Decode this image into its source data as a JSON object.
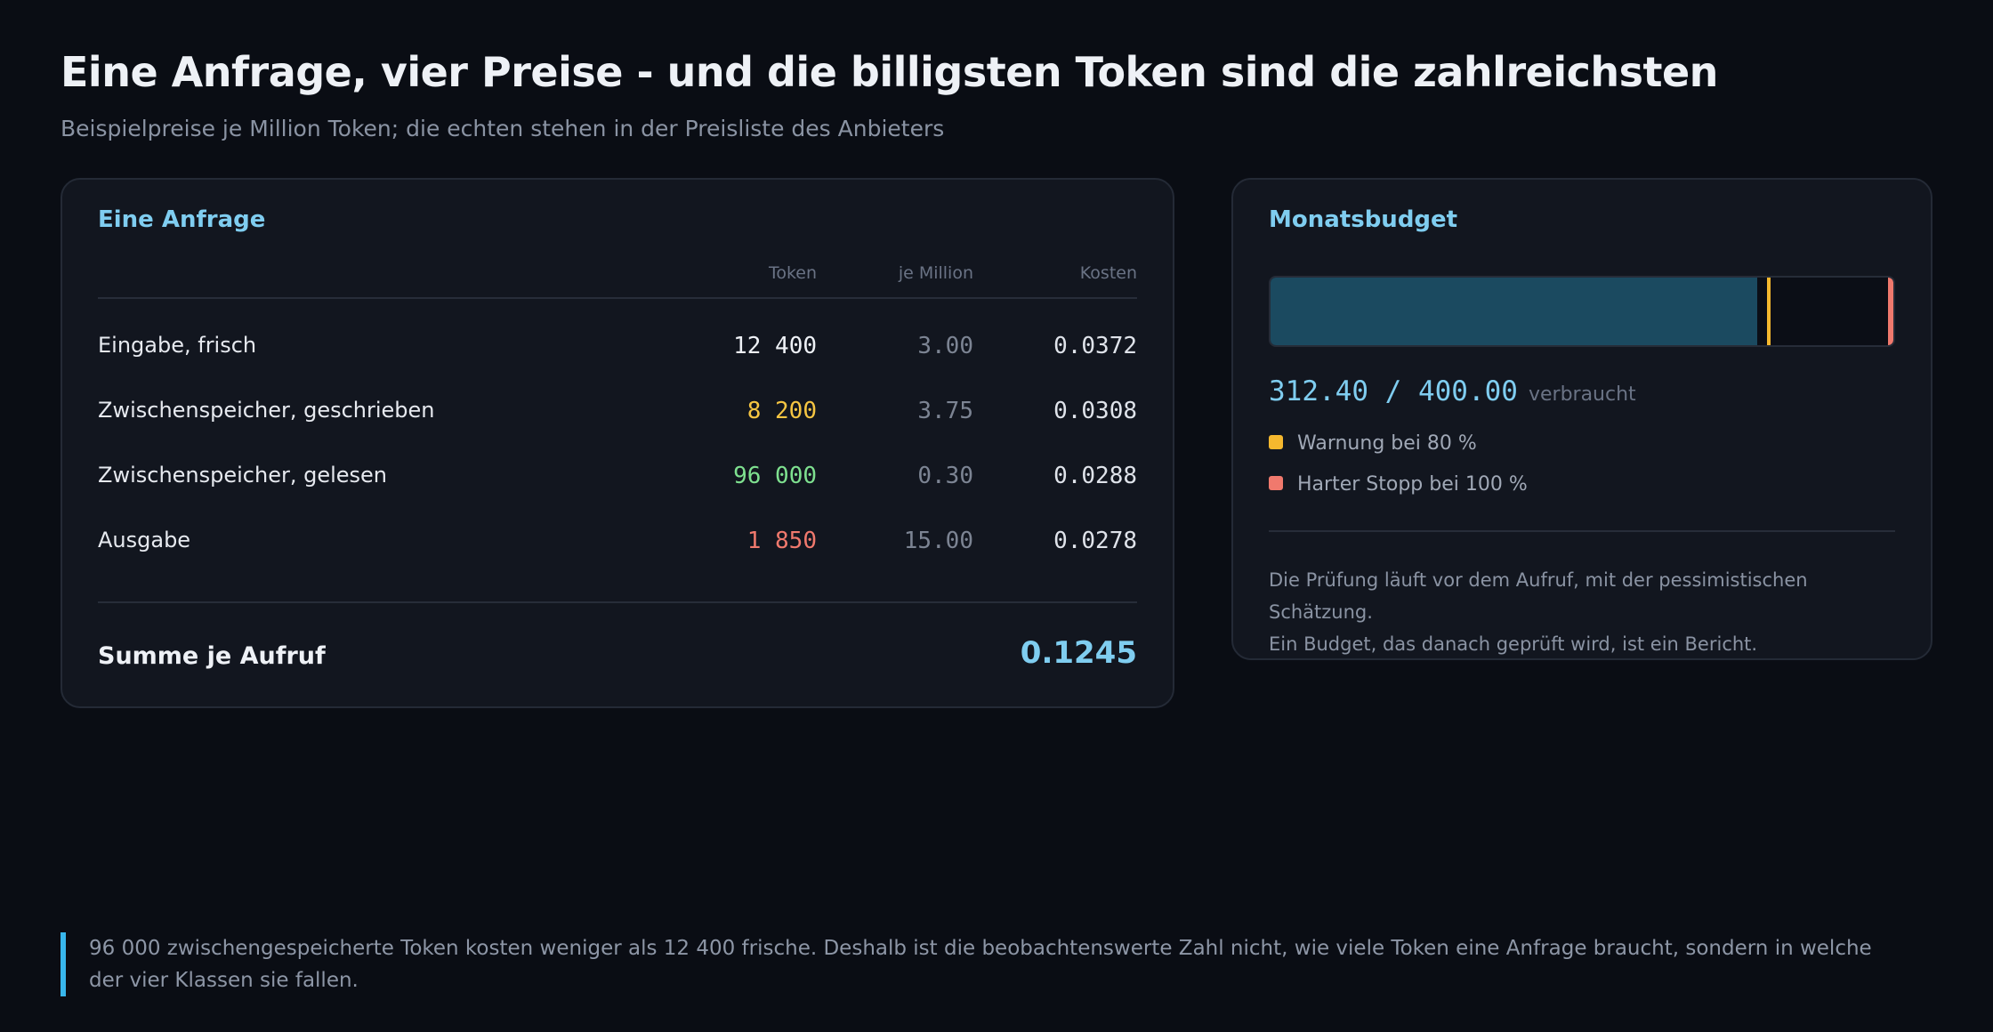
{
  "header": {
    "title": "Eine Anfrage, vier Preise - und die billigsten Token sind die zahlreichsten",
    "subtitle": "Beispielpreise je Million Token; die echten stehen in der Preisliste des Anbieters"
  },
  "request": {
    "title": "Eine Anfrage",
    "columns": {
      "token": "Token",
      "price": "je Million",
      "cost": "Kosten"
    },
    "rows": [
      {
        "label": "Eingabe, frisch",
        "tokens": "12 400",
        "price": "3.00",
        "cost": "0.0372",
        "color": "#eef1f6"
      },
      {
        "label": "Zwischenspeicher, geschrieben",
        "tokens": "8 200",
        "price": "3.75",
        "cost": "0.0308",
        "color": "#f5c542"
      },
      {
        "label": "Zwischenspeicher, gelesen",
        "tokens": "96 000",
        "price": "0.30",
        "cost": "0.0288",
        "color": "#7ee08f"
      },
      {
        "label": "Ausgabe",
        "tokens": "1 850",
        "price": "15.00",
        "cost": "0.0278",
        "color": "#f0796d"
      }
    ],
    "sum_label": "Summe je Aufruf",
    "sum_value": "0.1245"
  },
  "budget": {
    "title": "Monatsbudget",
    "used": 312.4,
    "limit": 400.0,
    "usage_text": "312.40 / 400.00",
    "usage_unit": "verbraucht",
    "fill_color": "#1b4a60",
    "warning": {
      "label": "Warnung bei 80 %",
      "fraction": 0.8,
      "color": "#f5b82e"
    },
    "stop": {
      "label": "Harter Stopp bei 100 %",
      "fraction": 1.0,
      "color": "#f0796d"
    },
    "note_line1": "Die Prüfung läuft vor dem Aufruf, mit der pessimistischen Schätzung.",
    "note_line2": "Ein Budget, das danach geprüft wird, ist ein Bericht."
  },
  "footer": {
    "text": "96 000 zwischengespeicherte Token kosten weniger als 12 400 frische. Deshalb ist die beobachtenswerte Zahl nicht, wie viele Token eine Anfrage braucht, sondern in welche der vier Klassen sie fallen.",
    "accent": "#38b6ec"
  }
}
